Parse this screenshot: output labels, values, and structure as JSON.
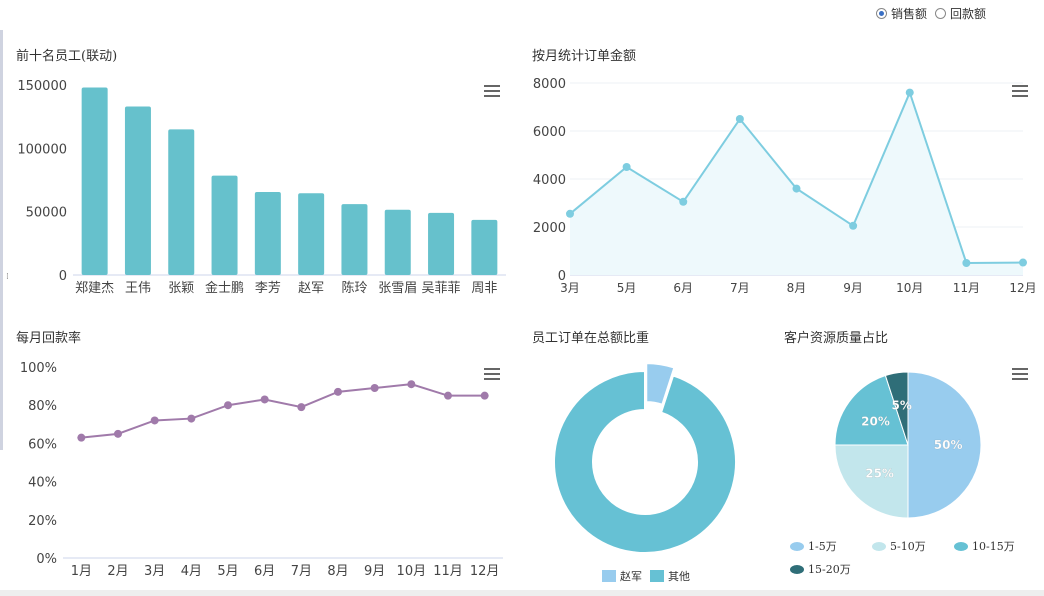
{
  "toggle": {
    "options": [
      {
        "label": "销售额",
        "selected": true
      },
      {
        "label": "回款额",
        "selected": false
      }
    ]
  },
  "panels": {
    "top_staff": {
      "title": "前十名员工(联动)"
    },
    "monthly_orders": {
      "title": "按月统计订单金额"
    },
    "repayment_rate": {
      "title": "每月回款率"
    },
    "staff_share": {
      "title": "员工订单在总额比重"
    },
    "customer_quality": {
      "title": "客户资源质量占比"
    }
  },
  "colors": {
    "bar": "#66c1cc",
    "line_blue": "#7ecde0",
    "area_blue": "#eef9fc",
    "line_purple": "#a07aaa",
    "pie1": "#98ccee",
    "pie2": "#c2e6ec",
    "pie3": "#66c1d4",
    "pie4": "#2f6e78"
  },
  "chart_data": [
    {
      "type": "bar",
      "title": "前十名员工(联动)",
      "categories": [
        "郑建杰",
        "王伟",
        "张颖",
        "金士鹏",
        "李芳",
        "赵军",
        "陈玲",
        "张雪眉",
        "吴菲菲",
        "周非"
      ],
      "values": [
        148000,
        133000,
        115000,
        78500,
        65500,
        64500,
        56000,
        51500,
        49000,
        43500
      ],
      "ylim": [
        0,
        150000
      ],
      "yticks": [
        "0",
        "50000",
        "100000",
        "150000"
      ],
      "ytick_values": [
        0,
        50000,
        100000,
        150000
      ]
    },
    {
      "type": "area",
      "title": "按月统计订单金额",
      "categories": [
        "3月",
        "5月",
        "6月",
        "7月",
        "8月",
        "9月",
        "10月",
        "11月",
        "12月"
      ],
      "values": [
        2550,
        4500,
        3050,
        6500,
        3600,
        2050,
        7600,
        500,
        520
      ],
      "ylim": [
        0,
        8000
      ],
      "yticks": [
        "0",
        "2000",
        "4000",
        "6000",
        "8000"
      ],
      "ytick_values": [
        0,
        2000,
        4000,
        6000,
        8000
      ]
    },
    {
      "type": "line",
      "title": "每月回款率",
      "categories": [
        "1月",
        "2月",
        "3月",
        "4月",
        "5月",
        "6月",
        "7月",
        "8月",
        "9月",
        "10月",
        "11月",
        "12月"
      ],
      "values": [
        63,
        65,
        72,
        73,
        80,
        83,
        79,
        87,
        89,
        91,
        85,
        85
      ],
      "ylim": [
        0,
        100
      ],
      "yticks": [
        "0%",
        "20%",
        "40%",
        "60%",
        "80%",
        "100%"
      ],
      "ytick_values": [
        0,
        20,
        40,
        60,
        80,
        100
      ]
    },
    {
      "type": "pie",
      "title": "员工订单在总额比重",
      "labels": [
        "赵军",
        "其他"
      ],
      "values": [
        5,
        95
      ]
    },
    {
      "type": "pie",
      "title": "客户资源质量占比",
      "labels": [
        "1-5万",
        "5-10万",
        "10-15万",
        "15-20万"
      ],
      "values": [
        50,
        25,
        20,
        5
      ],
      "data_labels": [
        "50%",
        "25%",
        "20%",
        "5%"
      ]
    }
  ]
}
